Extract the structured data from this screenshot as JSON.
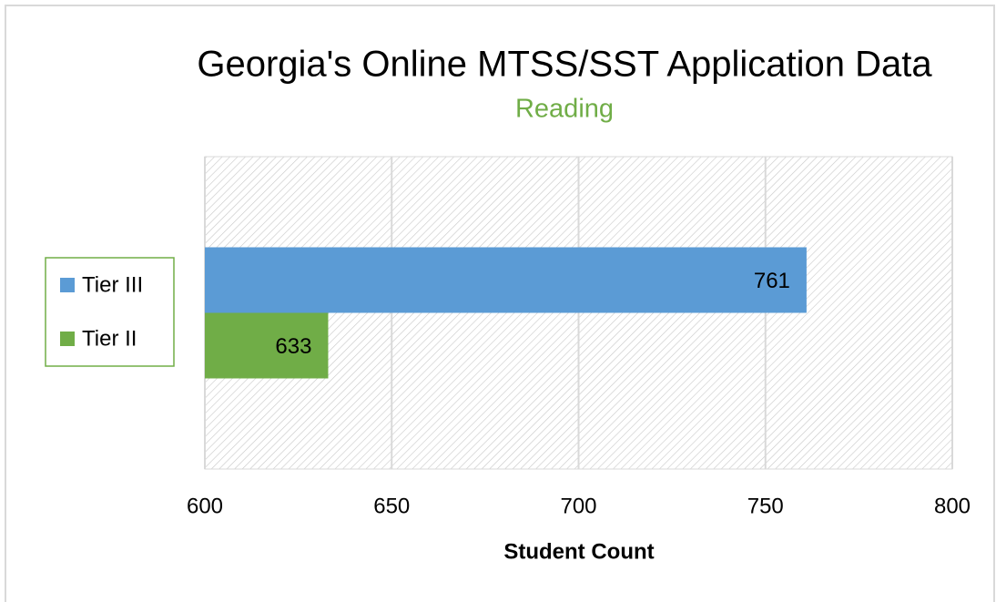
{
  "chart_data": {
    "type": "bar",
    "orientation": "horizontal",
    "title": "Georgia's Online MTSS/SST Application Data",
    "subtitle": "Reading",
    "xlabel": "Student Count",
    "categories": [
      null
    ],
    "series": [
      {
        "name": "Tier III",
        "color": "#5b9bd5",
        "values": [
          761
        ]
      },
      {
        "name": "Tier II",
        "color": "#70ad47",
        "values": [
          633
        ]
      }
    ],
    "xlim": [
      600,
      800
    ],
    "xticks": [
      600,
      650,
      700,
      750,
      800
    ],
    "grid": true,
    "legend": "left"
  }
}
